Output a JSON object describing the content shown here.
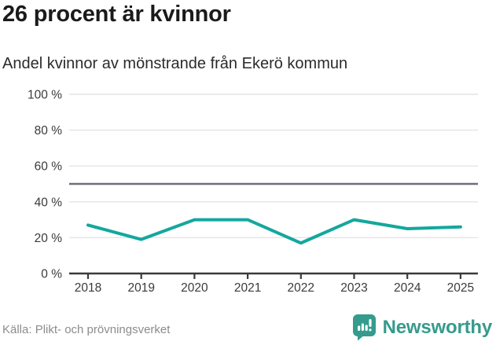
{
  "header": {
    "title": "26 procent är kvinnor",
    "subtitle": "Andel kvinnor av mönstrande från Ekerö kommun"
  },
  "footer": {
    "source": "Källa: Plikt- och prövningsverket",
    "brand": "Newsworthy"
  },
  "colors": {
    "line": "#14a79d",
    "grid": "#e4e4e4",
    "reference": "#6f6f78",
    "axis": "#3a3a3a",
    "axis_text": "#3a3a3a",
    "logo": "#359b8c"
  },
  "chart_data": {
    "type": "line",
    "title": "26 procent är kvinnor",
    "subtitle": "Andel kvinnor av mönstrande från Ekerö kommun",
    "x": [
      2018,
      2019,
      2020,
      2021,
      2022,
      2023,
      2024,
      2025
    ],
    "values": [
      27,
      19,
      30,
      30,
      17,
      30,
      25,
      26
    ],
    "ylim": [
      0,
      100
    ],
    "yticks": [
      0,
      20,
      40,
      60,
      80,
      100
    ],
    "ytick_suffix": " %",
    "reference_line": 50,
    "grid": true,
    "legend": "none",
    "line_color": "#14a79d"
  }
}
